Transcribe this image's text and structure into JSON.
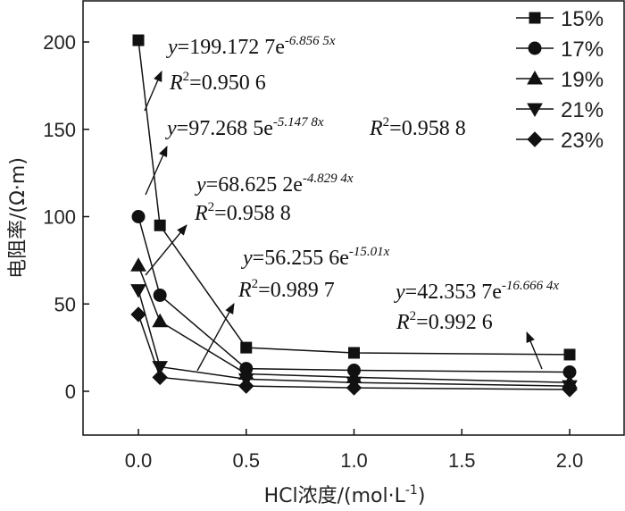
{
  "chart_data": {
    "type": "line",
    "title": "",
    "xlabel": "HCl浓度/(mol·L-1)",
    "xlabel_main": "HCl浓度/(mol·L",
    "xlabel_sup": "-1",
    "xlabel_end": ")",
    "ylabel": "电阻率/(Ω·m)",
    "xlim": [
      -0.25,
      2.2
    ],
    "ylim": [
      -25,
      225
    ],
    "x_ticks": [
      0.0,
      0.5,
      1.0,
      1.5,
      2.0
    ],
    "x_tick_labels": [
      "0.0",
      "0.5",
      "1.0",
      "1.5",
      "2.0"
    ],
    "y_ticks": [
      0,
      50,
      100,
      150,
      200
    ],
    "y_tick_labels": [
      "0",
      "50",
      "100",
      "150",
      "200"
    ],
    "x": [
      0,
      0.1,
      0.5,
      1.0,
      2.0
    ],
    "legend_position": "top-right",
    "series": [
      {
        "name": "15%",
        "marker": "square",
        "values": [
          201,
          95,
          25,
          22,
          21
        ],
        "fit": {
          "y": "y",
          "eq": "=199.172 7e",
          "exp": "-6.856 5x",
          "r": "R",
          "r2sup": "2",
          "r2": "=0.950 6"
        }
      },
      {
        "name": "17%",
        "marker": "circle",
        "values": [
          100,
          55,
          13,
          12,
          11
        ],
        "fit": {
          "y": "y",
          "eq": "=97.268 5e",
          "exp": "-5.147 8x",
          "r": "R",
          "r2sup": "2",
          "r2": "=0.958 8"
        }
      },
      {
        "name": "19%",
        "marker": "triangle-up",
        "values": [
          72,
          40,
          10,
          8,
          5
        ],
        "fit": {
          "y": "y",
          "eq": "=68.625 2e",
          "exp": "-4.829 4x",
          "r": "R",
          "r2sup": "2",
          "r2": "=0.958 8"
        }
      },
      {
        "name": "21%",
        "marker": "triangle-down",
        "values": [
          58,
          14,
          7,
          5,
          3
        ],
        "fit": {
          "y": "y",
          "eq": "=56.255 6e",
          "exp": "-15.01x",
          "r": "R",
          "r2sup": "2",
          "r2": "=0.989 7"
        }
      },
      {
        "name": "23%",
        "marker": "diamond",
        "values": [
          44,
          8,
          3,
          2,
          1
        ],
        "fit": {
          "y": "y",
          "eq": "=42.353 7e",
          "exp": "-16.666 4x",
          "r": "R",
          "r2sup": "2",
          "r2": "=0.992 6"
        }
      }
    ]
  }
}
